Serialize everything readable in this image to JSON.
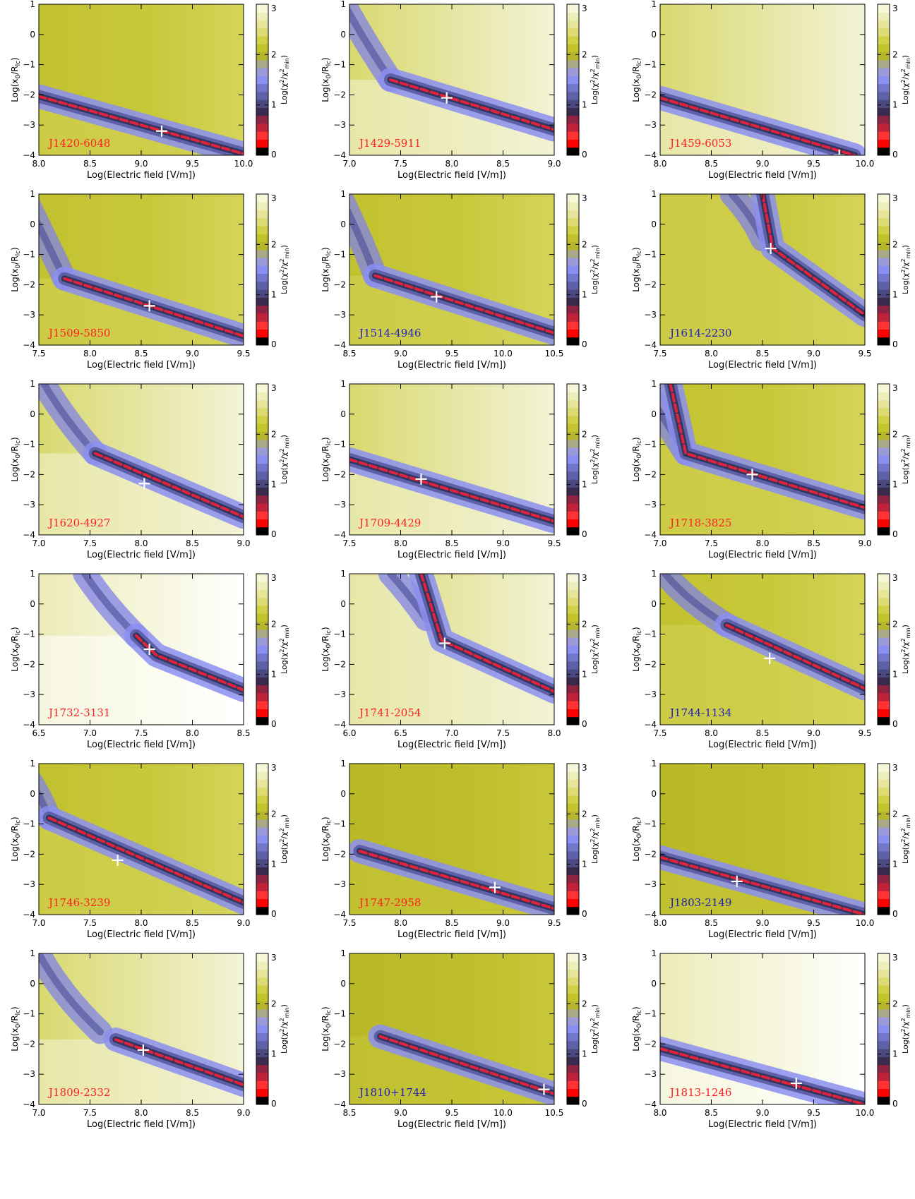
{
  "chart_data": {
    "type": "heatmap",
    "xlabel": "Log(Electric field [V/m])",
    "ylabel": "Log(x0/Rlc)",
    "ylabel_parts": {
      "a": "Log(x",
      "sub0": "0",
      "b": "/R",
      "sublc": "lc",
      "c": ")"
    },
    "colorbar_label": "Log(χ²/χ²min)",
    "colorbar_parts": {
      "a": "Log(χ",
      "sup1": "2",
      "b": "/χ",
      "sup2": "2",
      "sub": "min",
      "c": ")"
    },
    "ylim": [
      -4,
      1
    ],
    "yticks": [
      "1",
      "0",
      "−1",
      "−2",
      "−3",
      "−4"
    ],
    "colorbar_range": [
      0,
      3
    ],
    "colorbar_ticks": [
      "0",
      "1",
      "2",
      "3"
    ],
    "colorbar_colors": [
      "#000000",
      "#ff0000",
      "#ff3333",
      "#c0223a",
      "#8e2342",
      "#3a2a4e",
      "#4b4a80",
      "#5e60a8",
      "#7377cc",
      "#8b8ff0",
      "#9a9ad8",
      "#a9a98a",
      "#b6b62e",
      "#c3c32c",
      "#d1d149",
      "#dcdc73",
      "#e6e69b",
      "#eeeebb",
      "#f7f7da"
    ],
    "label_colors": {
      "red": "#ff2020",
      "blue": "#2020bb"
    },
    "panels": [
      {
        "name": "J1420-6048",
        "label_color": "red",
        "xlim": [
          8.0,
          10.0
        ],
        "xticks": [
          "8.0",
          "8.5",
          "9.0",
          "9.5",
          "10.0"
        ],
        "best_fit": {
          "x": 9.2,
          "y": -3.2
        },
        "valley": [
          [
            8.0,
            -2.05
          ],
          [
            10.0,
            -3.95
          ]
        ],
        "left_curve": null,
        "base": "med"
      },
      {
        "name": "J1429-5911",
        "label_color": "red",
        "xlim": [
          7.0,
          9.0
        ],
        "xticks": [
          "7.0",
          "7.5",
          "8.0",
          "8.5",
          "9.0"
        ],
        "best_fit": {
          "x": 7.95,
          "y": -2.1
        },
        "valley": [
          [
            7.4,
            -1.5
          ],
          [
            9.0,
            -3.15
          ]
        ],
        "left_curve": {
          "x_top": 7.2,
          "bend_x": 7.4,
          "bend_y": -1.5
        },
        "base": "light"
      },
      {
        "name": "J1459-6053",
        "label_color": "red",
        "xlim": [
          8.0,
          10.0
        ],
        "xticks": [
          "8.0",
          "8.5",
          "9.0",
          "9.5",
          "10.0"
        ],
        "best_fit": {
          "x": 9.75,
          "y": -4.0
        },
        "valley": [
          [
            8.0,
            -2.1
          ],
          [
            9.9,
            -4.0
          ]
        ],
        "left_curve": null,
        "base": "light"
      },
      {
        "name": "J1509-5850",
        "label_color": "red",
        "xlim": [
          7.5,
          9.5
        ],
        "xticks": [
          "7.5",
          "8.0",
          "8.5",
          "9.0",
          "9.5"
        ],
        "best_fit": {
          "x": 8.58,
          "y": -2.7
        },
        "valley": [
          [
            7.75,
            -1.8
          ],
          [
            9.5,
            -3.7
          ]
        ],
        "left_curve": {
          "x_top": 7.6,
          "bend_x": 7.75,
          "bend_y": -1.8
        },
        "base": "med"
      },
      {
        "name": "J1514-4946",
        "label_color": "blue",
        "xlim": [
          8.5,
          10.5
        ],
        "xticks": [
          "8.5",
          "9.0",
          "9.5",
          "10.0",
          "10.5"
        ],
        "best_fit": {
          "x": 9.35,
          "y": -2.4
        },
        "valley": [
          [
            8.75,
            -1.7
          ],
          [
            10.5,
            -3.6
          ]
        ],
        "left_curve": {
          "x_top": 8.65,
          "bend_x": 8.75,
          "bend_y": -1.7
        },
        "base": "med"
      },
      {
        "name": "J1614-2230",
        "label_color": "blue",
        "xlim": [
          7.5,
          9.5
        ],
        "xticks": [
          "7.5",
          "8.0",
          "8.5",
          "9.0",
          "9.5"
        ],
        "best_fit": {
          "x": 8.58,
          "y": -0.8
        },
        "valley": [
          [
            8.5,
            1.0
          ],
          [
            8.6,
            -0.8
          ],
          [
            9.5,
            -3.0
          ]
        ],
        "left_curve": {
          "x_top": 8.45,
          "bend_x": 8.5,
          "bend_y": -0.5
        },
        "base": "med"
      },
      {
        "name": "J1620-4927",
        "label_color": "red",
        "xlim": [
          7.0,
          9.0
        ],
        "xticks": [
          "7.0",
          "7.5",
          "8.0",
          "8.5",
          "9.0"
        ],
        "best_fit": {
          "x": 8.03,
          "y": -2.3
        },
        "valley": [
          [
            7.55,
            -1.3
          ],
          [
            9.0,
            -3.4
          ]
        ],
        "left_curve": {
          "x_top": 7.3,
          "bend_x": 7.55,
          "bend_y": -1.3
        },
        "base": "light"
      },
      {
        "name": "J1709-4429",
        "label_color": "red",
        "xlim": [
          7.5,
          9.5
        ],
        "xticks": [
          "7.5",
          "8.0",
          "8.5",
          "9.0",
          "9.5"
        ],
        "best_fit": {
          "x": 8.2,
          "y": -2.15
        },
        "valley": [
          [
            7.5,
            -1.5
          ],
          [
            9.5,
            -3.55
          ]
        ],
        "left_curve": null,
        "base": "light"
      },
      {
        "name": "J1718-3825",
        "label_color": "red",
        "xlim": [
          7.0,
          9.0
        ],
        "xticks": [
          "7.0",
          "7.5",
          "8.0",
          "8.5",
          "9.0"
        ],
        "best_fit": {
          "x": 7.9,
          "y": -2.0
        },
        "valley": [
          [
            7.1,
            1.0
          ],
          [
            7.25,
            -1.3
          ],
          [
            9.0,
            -3.1
          ]
        ],
        "left_curve": {
          "x_top": 7.08,
          "bend_x": 7.25,
          "bend_y": -1.3
        },
        "base": "med"
      },
      {
        "name": "J1732-3131",
        "label_color": "red",
        "xlim": [
          6.5,
          8.5
        ],
        "xticks": [
          "6.5",
          "7.0",
          "7.5",
          "8.0",
          "8.5"
        ],
        "best_fit": {
          "x": 7.58,
          "y": -1.5
        },
        "valley": [
          [
            7.45,
            -1.05
          ],
          [
            7.65,
            -1.7
          ],
          [
            8.5,
            -2.85
          ]
        ],
        "left_curve": {
          "x_top": 7.2,
          "bend_x": 7.45,
          "bend_y": -1.05
        },
        "base": "white"
      },
      {
        "name": "J1741-2054",
        "label_color": "red",
        "xlim": [
          6.0,
          8.0
        ],
        "xticks": [
          "6.0",
          "6.5",
          "7.0",
          "7.5",
          "8.0"
        ],
        "best_fit": {
          "x": 6.93,
          "y": -1.3
        },
        "valley": [
          [
            6.7,
            1.0
          ],
          [
            6.9,
            -1.2
          ],
          [
            8.0,
            -2.9
          ]
        ],
        "left_curve": {
          "x_top": 6.65,
          "bend_x": 6.75,
          "bend_y": -0.5
        },
        "base": "light"
      },
      {
        "name": "J1744-1134",
        "label_color": "blue",
        "xlim": [
          7.5,
          9.5
        ],
        "xticks": [
          "7.5",
          "8.0",
          "8.5",
          "9.0",
          "9.5"
        ],
        "best_fit": {
          "x": 8.57,
          "y": -1.8
        },
        "valley": [
          [
            8.15,
            -0.7
          ],
          [
            9.5,
            -2.8
          ]
        ],
        "left_curve": {
          "x_top": 7.8,
          "bend_x": 8.15,
          "bend_y": -0.7
        },
        "base": "med"
      },
      {
        "name": "J1746-3239",
        "label_color": "red",
        "xlim": [
          7.0,
          9.0
        ],
        "xticks": [
          "7.0",
          "7.5",
          "8.0",
          "8.5",
          "9.0"
        ],
        "best_fit": {
          "x": 7.77,
          "y": -2.2
        },
        "valley": [
          [
            7.1,
            -0.8
          ],
          [
            9.0,
            -3.6
          ]
        ],
        "left_curve": {
          "x_top": 7.05,
          "bend_x": 7.1,
          "bend_y": -0.8
        },
        "base": "med"
      },
      {
        "name": "J1747-2958",
        "label_color": "red",
        "xlim": [
          7.5,
          9.5
        ],
        "xticks": [
          "7.5",
          "8.0",
          "8.5",
          "9.0",
          "9.5"
        ],
        "best_fit": {
          "x": 8.92,
          "y": -3.1
        },
        "valley": [
          [
            7.6,
            -1.9
          ],
          [
            9.5,
            -3.8
          ]
        ],
        "left_curve": null,
        "base": "dark"
      },
      {
        "name": "J1803-2149",
        "label_color": "blue",
        "xlim": [
          8.0,
          10.0
        ],
        "xticks": [
          "8.0",
          "8.5",
          "9.0",
          "9.5",
          "10.0"
        ],
        "best_fit": {
          "x": 8.75,
          "y": -2.9
        },
        "valley": [
          [
            8.0,
            -2.1
          ],
          [
            10.0,
            -4.0
          ]
        ],
        "left_curve": null,
        "base": "dark"
      },
      {
        "name": "J1809-2332",
        "label_color": "red",
        "xlim": [
          7.0,
          9.0
        ],
        "xticks": [
          "7.0",
          "7.5",
          "8.0",
          "8.5",
          "9.0"
        ],
        "best_fit": {
          "x": 8.02,
          "y": -2.2
        },
        "valley": [
          [
            7.75,
            -1.85
          ],
          [
            9.0,
            -3.35
          ]
        ],
        "left_curve": {
          "x_top": 7.25,
          "bend_x": 7.6,
          "bend_y": -1.6
        },
        "base": "light"
      },
      {
        "name": "J1810+1744",
        "label_color": "blue",
        "xlim": [
          8.5,
          10.5
        ],
        "xticks": [
          "8.5",
          "9.0",
          "9.5",
          "10.0",
          "10.5"
        ],
        "best_fit": {
          "x": 10.4,
          "y": -3.5
        },
        "valley": [
          [
            8.8,
            -1.75
          ],
          [
            10.5,
            -3.65
          ]
        ],
        "left_curve": null,
        "base": "dark"
      },
      {
        "name": "J1813-1246",
        "label_color": "red",
        "xlim": [
          8.0,
          10.0
        ],
        "xticks": [
          "8.0",
          "8.5",
          "9.0",
          "9.5",
          "10.0"
        ],
        "best_fit": {
          "x": 9.33,
          "y": -3.3
        },
        "valley": [
          [
            8.0,
            -2.15
          ],
          [
            10.0,
            -4.0
          ]
        ],
        "left_curve": null,
        "base": "white"
      }
    ]
  }
}
